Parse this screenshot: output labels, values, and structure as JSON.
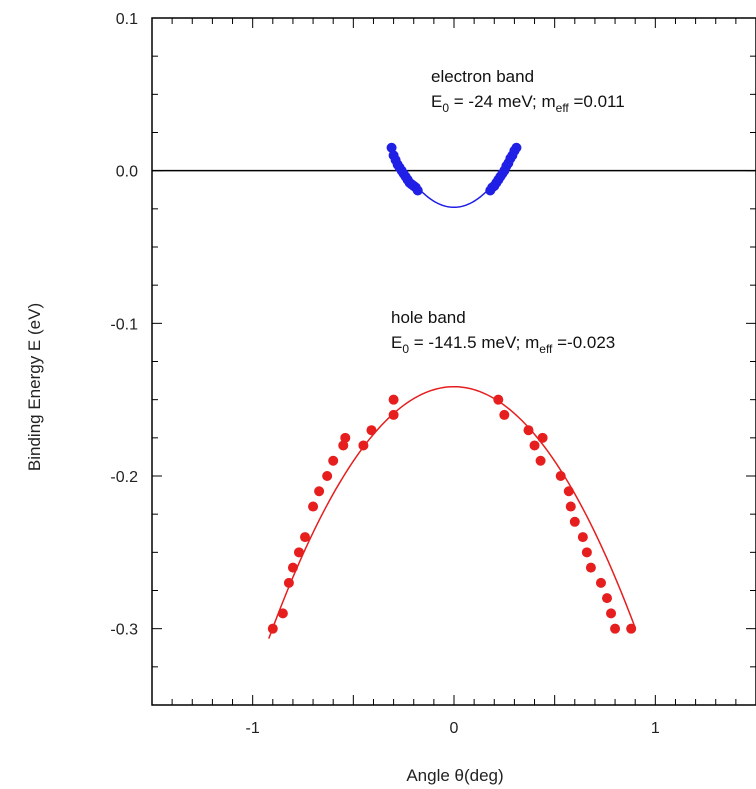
{
  "chart_data": {
    "type": "scatter",
    "title": "",
    "xlabel": "Angle θ(deg)",
    "ylabel": "Binding Energy E (eV)",
    "xlim": [
      -1.5,
      1.5
    ],
    "ylim": [
      -0.35,
      0.1
    ],
    "x_ticks": [
      -1,
      0,
      1
    ],
    "x_tick_labels": [
      "-1",
      "0",
      "1"
    ],
    "y_ticks": [
      0.1,
      0.0,
      -0.1,
      -0.2,
      -0.3
    ],
    "y_tick_labels": [
      "0.1",
      "0.0",
      "-0.1",
      "-0.2",
      "-0.3"
    ],
    "grid": false,
    "reference_line": {
      "y": 0.0,
      "color": "#000000"
    },
    "annotations": [
      {
        "id": "electron",
        "line1": "electron band",
        "e_main": "E",
        "e_sub": "0",
        "e_rest": " = -24 meV; m",
        "m_sub": "eff",
        "m_rest": " =0.011"
      },
      {
        "id": "hole",
        "line1": "hole band",
        "e_main": "E",
        "e_sub": "0",
        "e_rest": " = -141.5 meV; m",
        "m_sub": "eff",
        "m_rest": " =-0.023"
      }
    ],
    "series": [
      {
        "id": "electron-band-data",
        "color": "#1f1fe6",
        "x": [
          -0.31,
          -0.3,
          -0.29,
          -0.28,
          -0.27,
          -0.26,
          -0.25,
          -0.24,
          -0.23,
          -0.22,
          -0.21,
          -0.2,
          -0.19,
          -0.18,
          0.18,
          0.19,
          0.2,
          0.21,
          0.22,
          0.23,
          0.24,
          0.25,
          0.26,
          0.27,
          0.28,
          0.29,
          0.3,
          0.31
        ],
        "y": [
          0.015,
          0.01,
          0.007,
          0.004,
          0.002,
          0.0,
          -0.002,
          -0.004,
          -0.006,
          -0.008,
          -0.009,
          -0.01,
          -0.011,
          -0.013,
          -0.013,
          -0.011,
          -0.01,
          -0.008,
          -0.006,
          -0.004,
          -0.002,
          0.0,
          0.003,
          0.005,
          0.008,
          0.01,
          0.013,
          0.015
        ]
      },
      {
        "id": "hole-band-data",
        "color": "#e61e1e",
        "x": [
          -0.9,
          -0.85,
          -0.82,
          -0.8,
          -0.77,
          -0.74,
          -0.7,
          -0.67,
          -0.63,
          -0.6,
          -0.55,
          -0.54,
          -0.45,
          -0.41,
          -0.3,
          -0.3,
          0.22,
          0.25,
          0.37,
          0.4,
          0.43,
          0.44,
          0.53,
          0.57,
          0.58,
          0.6,
          0.64,
          0.66,
          0.68,
          0.73,
          0.76,
          0.78,
          0.8,
          0.88
        ],
        "y": [
          -0.3,
          -0.29,
          -0.27,
          -0.26,
          -0.25,
          -0.24,
          -0.22,
          -0.21,
          -0.2,
          -0.19,
          -0.18,
          -0.175,
          -0.18,
          -0.17,
          -0.15,
          -0.16,
          -0.15,
          -0.16,
          -0.17,
          -0.18,
          -0.19,
          -0.175,
          -0.2,
          -0.21,
          -0.22,
          -0.23,
          -0.24,
          -0.25,
          -0.26,
          -0.27,
          -0.28,
          -0.29,
          -0.3,
          -0.3
        ]
      },
      {
        "id": "electron-band-fit",
        "color": "#1f1fe6",
        "fit": {
          "form": "parabola",
          "E0": -0.024,
          "curvature": 0.4,
          "x_range": [
            -0.3,
            0.3
          ]
        }
      },
      {
        "id": "hole-band-fit",
        "color": "#e61e1e",
        "fit": {
          "form": "parabola",
          "E0": -0.1415,
          "curvature": -0.195,
          "x_range": [
            -0.92,
            0.9
          ]
        }
      }
    ]
  }
}
